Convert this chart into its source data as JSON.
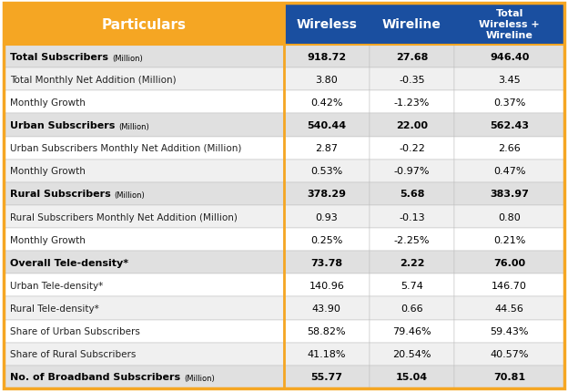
{
  "header_bg": "#F5A623",
  "header_text_color": "#FFFFFF",
  "col_header_bg": "#1A4FA0",
  "col_header_text_color": "#FFFFFF",
  "bold_row_bg": "#E0E0E0",
  "normal_row_bg": "#FFFFFF",
  "alt_row_bg": "#F0F0F0",
  "orange_border": "#F5A623",
  "blue_divider": "#1A4FA0",
  "rows": [
    {
      "label": "Total Subscribers",
      "suffix": "(Million)",
      "bold": true,
      "wireless": "918.72",
      "wireline": "27.68",
      "total": "946.40"
    },
    {
      "label": "Total Monthly Net Addition (Million)",
      "suffix": "",
      "bold": false,
      "wireless": "3.80",
      "wireline": "-0.35",
      "total": "3.45"
    },
    {
      "label": "Monthly Growth",
      "suffix": "",
      "bold": false,
      "wireless": "0.42%",
      "wireline": "-1.23%",
      "total": "0.37%"
    },
    {
      "label": "Urban Subscribers",
      "suffix": "(Million)",
      "bold": true,
      "wireless": "540.44",
      "wireline": "22.00",
      "total": "562.43"
    },
    {
      "label": "Urban Subscribers Monthly Net Addition (Million)",
      "suffix": "",
      "bold": false,
      "wireless": "2.87",
      "wireline": "-0.22",
      "total": "2.66"
    },
    {
      "label": "Monthly Growth",
      "suffix": "",
      "bold": false,
      "wireless": "0.53%",
      "wireline": "-0.97%",
      "total": "0.47%"
    },
    {
      "label": "Rural Subscribers",
      "suffix": "(Million)",
      "bold": true,
      "wireless": "378.29",
      "wireline": "5.68",
      "total": "383.97"
    },
    {
      "label": "Rural Subscribers Monthly Net Addition (Million)",
      "suffix": "",
      "bold": false,
      "wireless": "0.93",
      "wireline": "-0.13",
      "total": "0.80"
    },
    {
      "label": "Monthly Growth",
      "suffix": "",
      "bold": false,
      "wireless": "0.25%",
      "wireline": "-2.25%",
      "total": "0.21%"
    },
    {
      "label": "Overall Tele-density*",
      "suffix": "",
      "bold": true,
      "wireless": "73.78",
      "wireline": "2.22",
      "total": "76.00"
    },
    {
      "label": "Urban Tele-density*",
      "suffix": "",
      "bold": false,
      "wireless": "140.96",
      "wireline": "5.74",
      "total": "146.70"
    },
    {
      "label": "Rural Tele-density*",
      "suffix": "",
      "bold": false,
      "wireless": "43.90",
      "wireline": "0.66",
      "total": "44.56"
    },
    {
      "label": "Share of Urban Subscribers",
      "suffix": "",
      "bold": false,
      "wireless": "58.82%",
      "wireline": "79.46%",
      "total": "59.43%"
    },
    {
      "label": "Share of Rural Subscribers",
      "suffix": "",
      "bold": false,
      "wireless": "41.18%",
      "wireline": "20.54%",
      "total": "40.57%"
    },
    {
      "label": "No. of Broadband Subscribers",
      "suffix": "(Million)",
      "bold": true,
      "wireless": "55.77",
      "wireline": "15.04",
      "total": "70.81"
    }
  ],
  "bold_row_indices": [
    0,
    3,
    6,
    9,
    14
  ]
}
